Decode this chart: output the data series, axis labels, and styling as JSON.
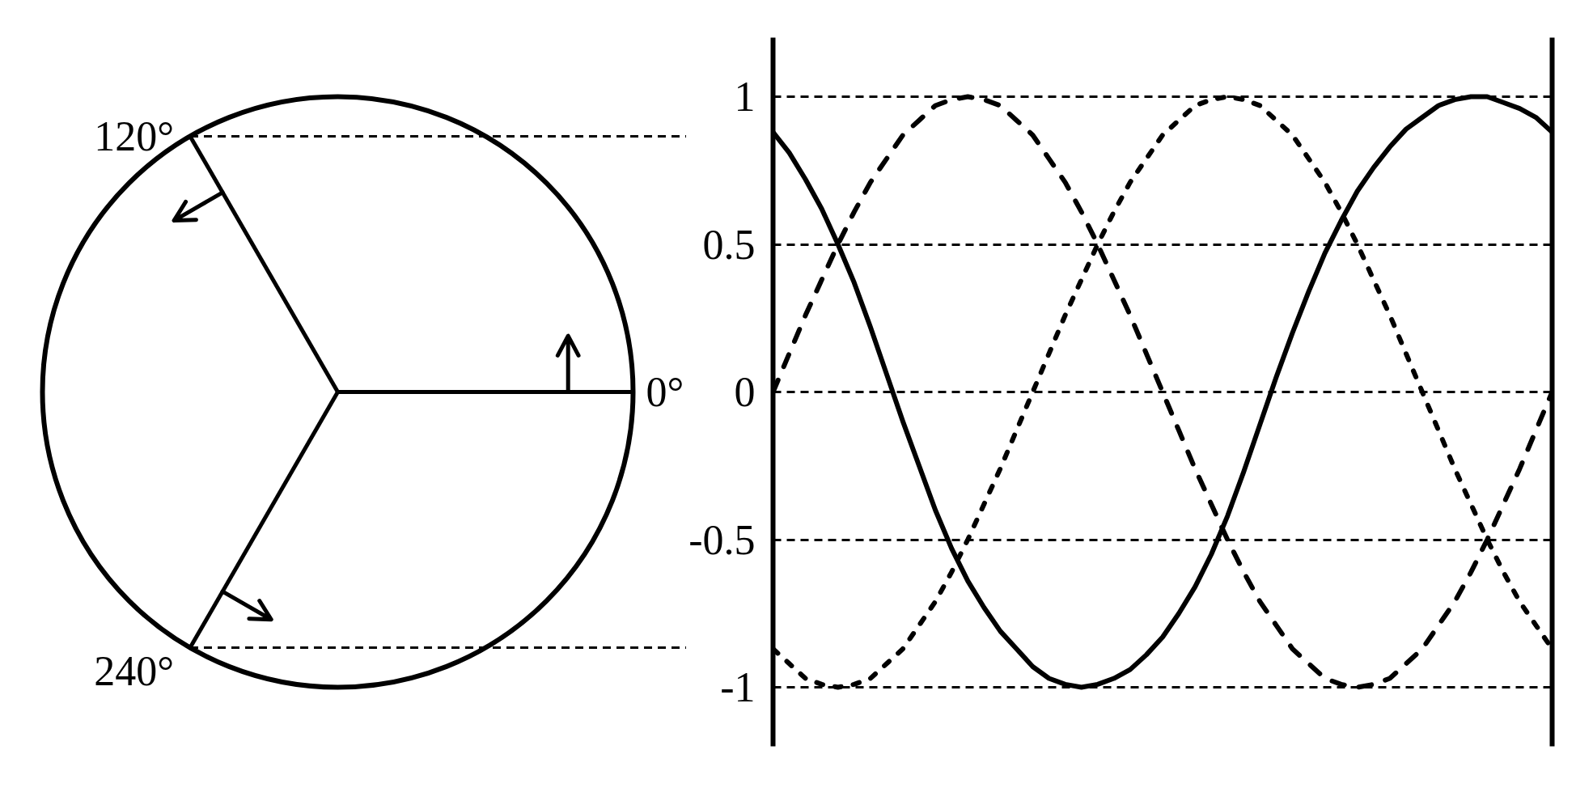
{
  "chart_data": {
    "type": "line",
    "categories": [
      null,
      null,
      null,
      null,
      null,
      null,
      null,
      null,
      null,
      null,
      null,
      null,
      null,
      null,
      null,
      null,
      null,
      null,
      null,
      null,
      null,
      null,
      null,
      null,
      null,
      null,
      null,
      null,
      null,
      null,
      null,
      null,
      null,
      null,
      null,
      null,
      null,
      null,
      null,
      null,
      null,
      null,
      null,
      null,
      null,
      null,
      null,
      null,
      null
    ],
    "series": [
      {
        "color": "#000000",
        "line_style": "dashed",
        "values": [
          0,
          0.13,
          0.26,
          0.38,
          0.5,
          0.61,
          0.71,
          0.79,
          0.87,
          0.92,
          0.97,
          0.99,
          1,
          0.99,
          0.97,
          0.92,
          0.87,
          0.79,
          0.71,
          0.61,
          0.5,
          0.38,
          0.26,
          0.13,
          0,
          -0.13,
          -0.26,
          -0.38,
          -0.5,
          -0.61,
          -0.71,
          -0.79,
          -0.87,
          -0.92,
          -0.97,
          -0.99,
          -1,
          -0.99,
          -0.97,
          -0.92,
          -0.87,
          -0.79,
          -0.71,
          -0.61,
          -0.5,
          -0.38,
          -0.26,
          -0.13,
          0
        ]
      },
      {
        "color": "#000000",
        "line_style": "solid",
        "values": [
          0.88,
          0.81,
          0.72,
          0.62,
          0.5,
          0.37,
          0.22,
          0.06,
          -0.1,
          -0.25,
          -0.4,
          -0.53,
          -0.64,
          -0.73,
          -0.81,
          -0.87,
          -0.93,
          -0.97,
          -0.99,
          -1,
          -0.99,
          -0.97,
          -0.94,
          -0.89,
          -0.83,
          -0.75,
          -0.66,
          -0.55,
          -0.42,
          -0.27,
          -0.11,
          0.05,
          0.2,
          0.34,
          0.47,
          0.58,
          0.68,
          0.76,
          0.83,
          0.89,
          0.93,
          0.97,
          0.99,
          1,
          1,
          0.98,
          0.96,
          0.93,
          0.88
        ]
      },
      {
        "color": "#000000",
        "line_style": "dotted",
        "values": [
          -0.87,
          -0.92,
          -0.97,
          -0.99,
          -1,
          -0.99,
          -0.97,
          -0.92,
          -0.87,
          -0.79,
          -0.71,
          -0.61,
          -0.5,
          -0.38,
          -0.26,
          -0.13,
          0,
          0.13,
          0.26,
          0.38,
          0.5,
          0.61,
          0.71,
          0.79,
          0.87,
          0.92,
          0.97,
          0.99,
          1,
          0.99,
          0.97,
          0.92,
          0.87,
          0.79,
          0.71,
          0.61,
          0.5,
          0.38,
          0.26,
          0.13,
          0,
          -0.13,
          -0.26,
          -0.38,
          -0.5,
          -0.61,
          -0.71,
          -0.79,
          -0.87
        ]
      }
    ],
    "ylim": [
      -1.2,
      1.2
    ],
    "yticks": [
      -1,
      -0.5,
      0,
      0.5,
      1
    ],
    "grid": "y",
    "tick_labels": "y",
    "annotations": [
      "0°",
      "120°",
      "240°"
    ]
  }
}
